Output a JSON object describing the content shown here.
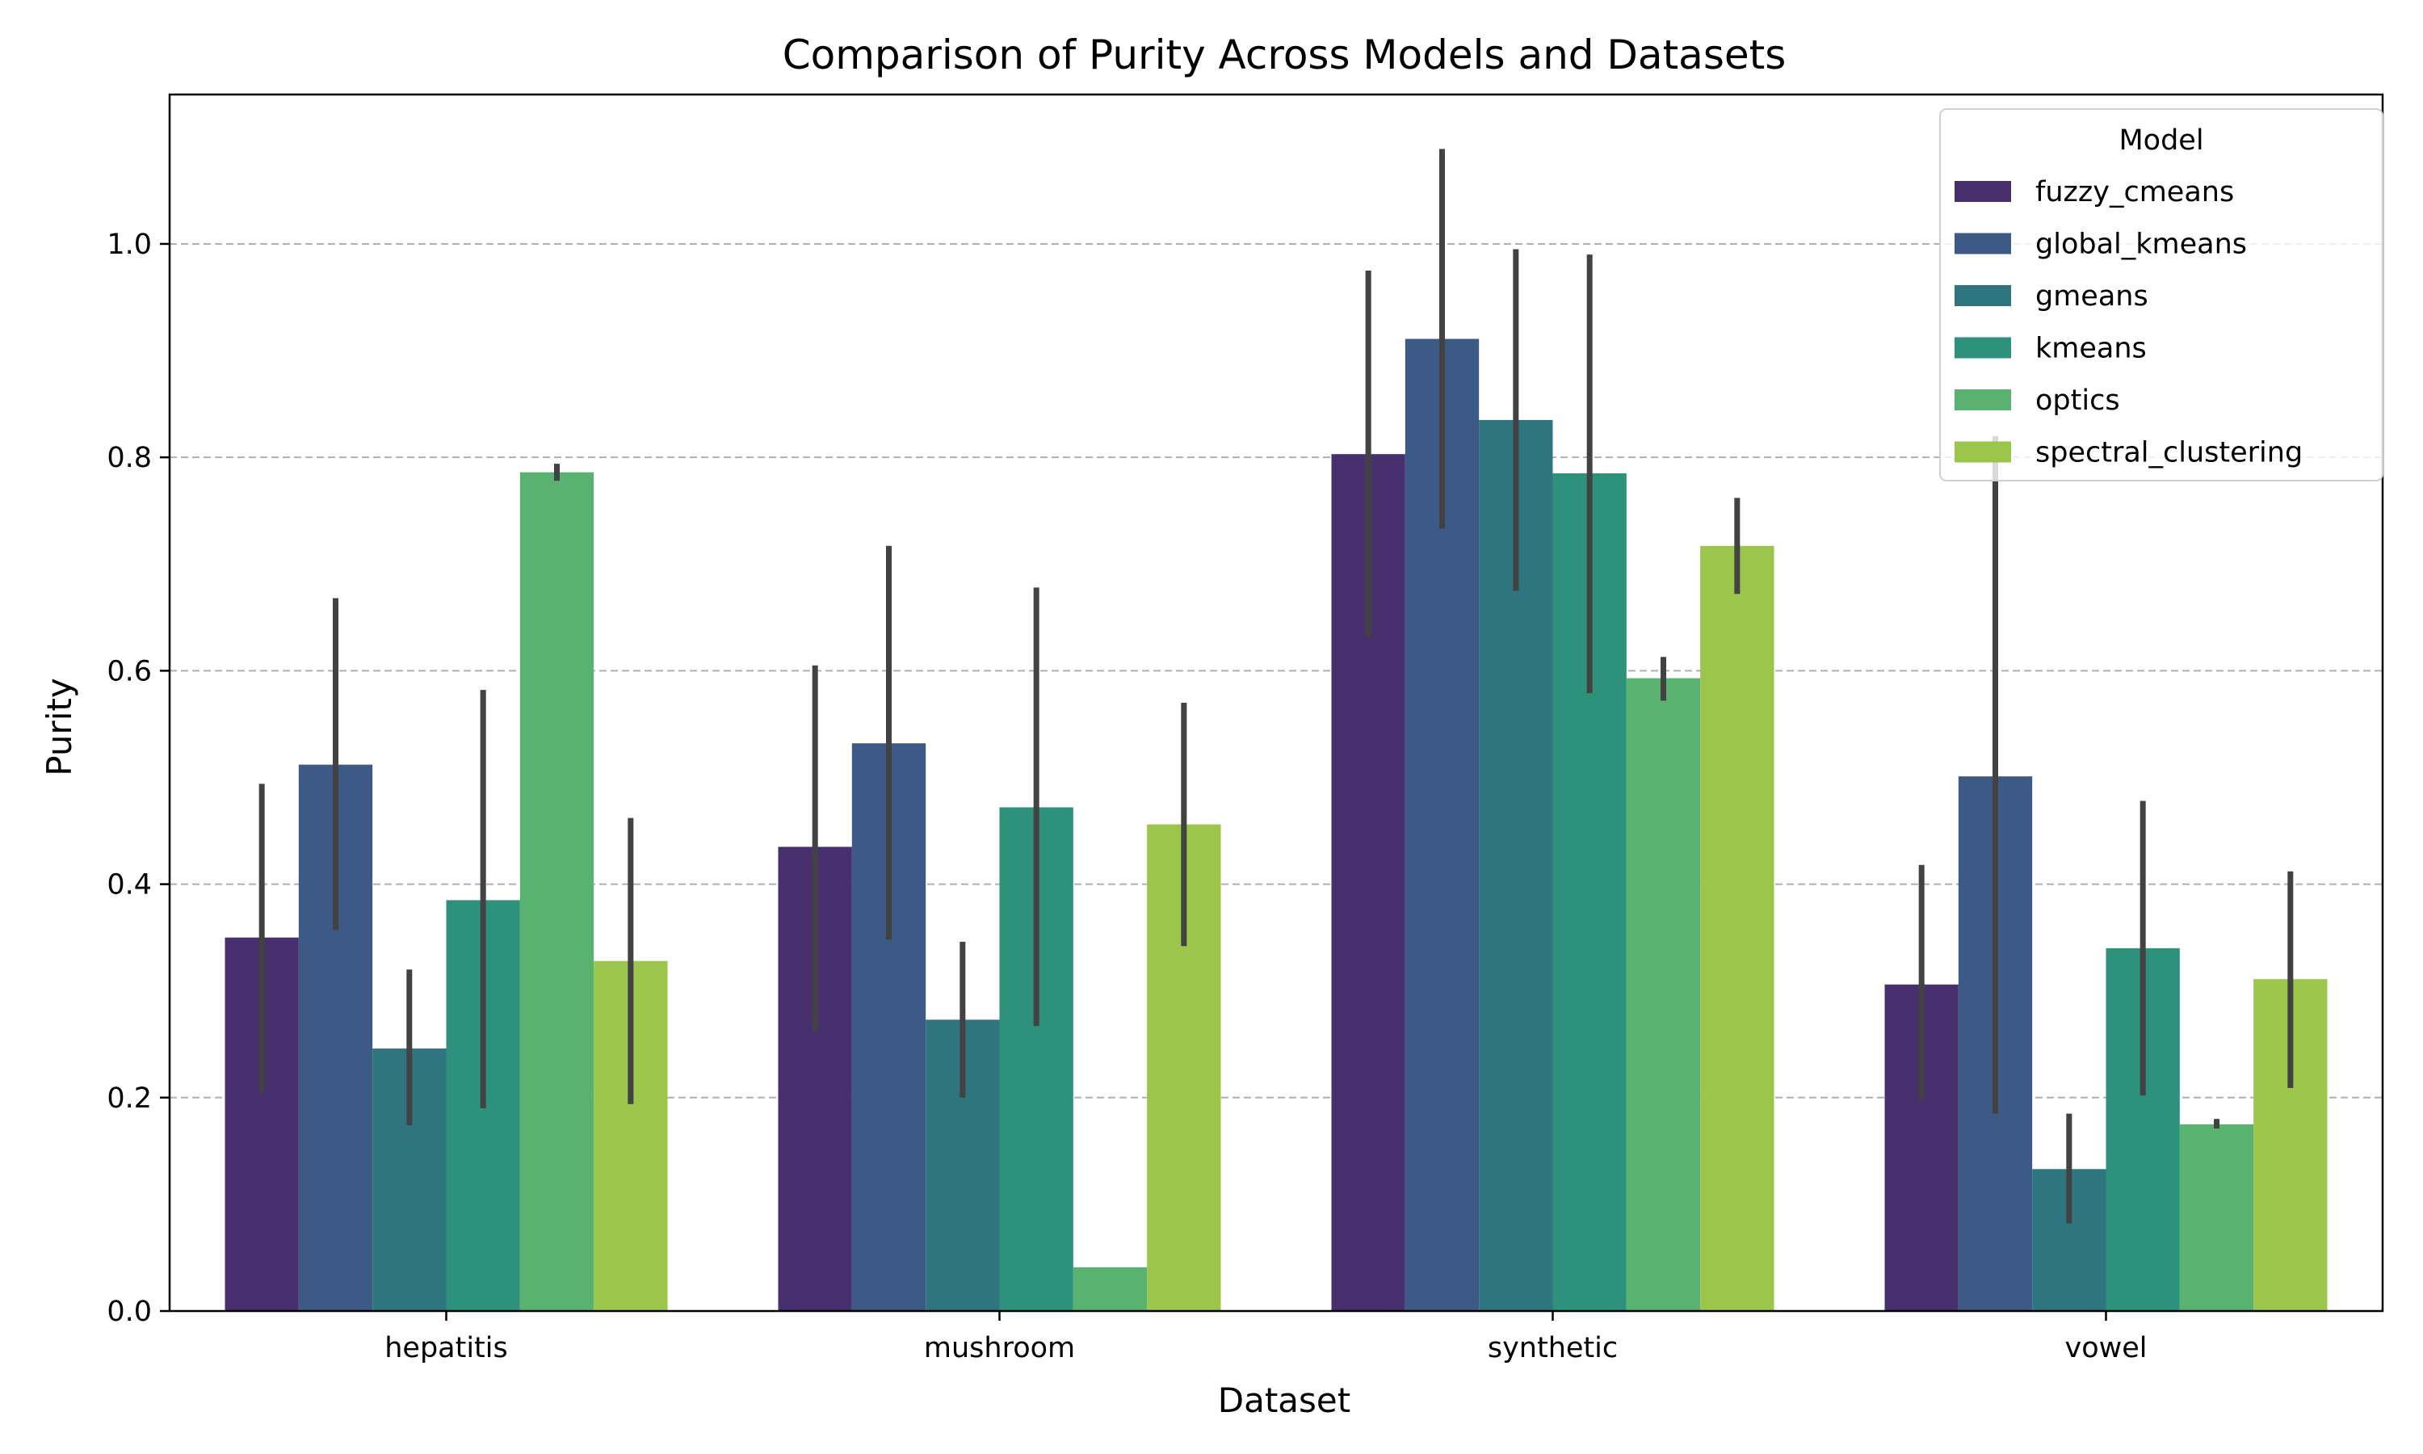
{
  "chart_data": {
    "type": "bar",
    "title": "Comparison of Purity Across Models and Datasets",
    "xlabel": "Dataset",
    "ylabel": "Purity",
    "ylim": [
      0,
      1.14
    ],
    "yticks": [
      "0.0",
      "0.2",
      "0.4",
      "0.6",
      "0.8",
      "1.0"
    ],
    "grid": "y-dashed",
    "categories": [
      "hepatitis",
      "mushroom",
      "synthetic",
      "vowel"
    ],
    "legend": {
      "title": "Model",
      "placement": "top-right"
    },
    "series": [
      {
        "name": "fuzzy_cmeans",
        "color": "#482f6e",
        "values": [
          0.35,
          0.435,
          0.803,
          0.306
        ],
        "err_low": [
          0.205,
          0.262,
          0.632,
          0.198
        ],
        "err_high": [
          0.494,
          0.605,
          0.975,
          0.418
        ]
      },
      {
        "name": "global_kmeans",
        "color": "#3c5a85",
        "values": [
          0.512,
          0.532,
          0.911,
          0.501
        ],
        "err_low": [
          0.357,
          0.348,
          0.733,
          0.185
        ],
        "err_high": [
          0.668,
          0.717,
          1.089,
          0.82
        ]
      },
      {
        "name": "gmeans",
        "color": "#2f7580",
        "values": [
          0.246,
          0.273,
          0.835,
          0.133
        ],
        "err_low": [
          0.174,
          0.2,
          0.675,
          0.082
        ],
        "err_high": [
          0.32,
          0.346,
          0.995,
          0.185
        ]
      },
      {
        "name": "kmeans",
        "color": "#2e917b",
        "values": [
          0.385,
          0.472,
          0.785,
          0.34
        ],
        "err_low": [
          0.19,
          0.267,
          0.579,
          0.202
        ],
        "err_high": [
          0.582,
          0.678,
          0.99,
          0.478
        ]
      },
      {
        "name": "optics",
        "color": "#5ab270",
        "values": [
          0.786,
          0.041,
          0.593,
          0.175
        ],
        "err_low": [
          0.778,
          0.041,
          0.572,
          0.171
        ],
        "err_high": [
          0.794,
          0.041,
          0.613,
          0.18
        ]
      },
      {
        "name": "spectral_clustering",
        "color": "#9bc54b",
        "values": [
          0.328,
          0.456,
          0.717,
          0.311
        ],
        "err_low": [
          0.194,
          0.342,
          0.672,
          0.209
        ],
        "err_high": [
          0.462,
          0.57,
          0.762,
          0.412
        ]
      }
    ]
  }
}
